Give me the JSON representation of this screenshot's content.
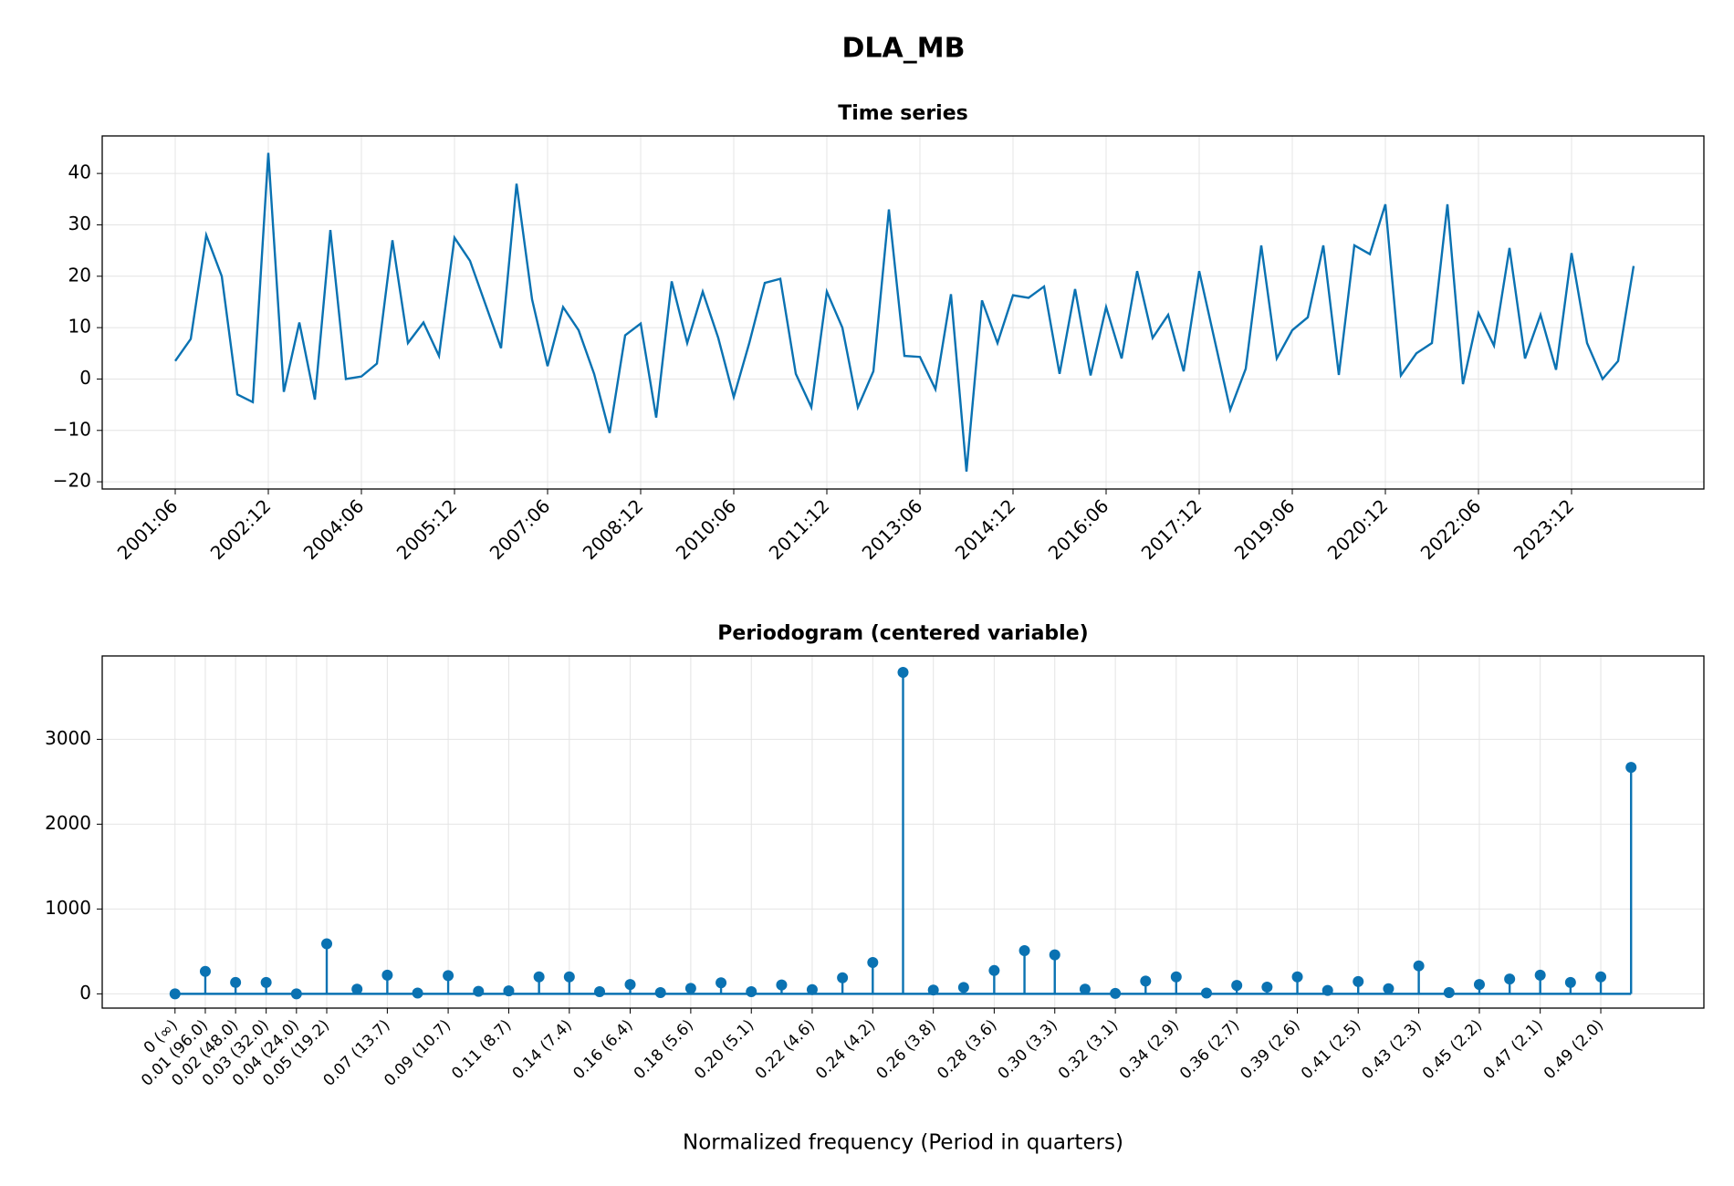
{
  "title": "DLA_MB",
  "chart_data": [
    {
      "type": "line",
      "title": "Time series",
      "color": "#0a72b2",
      "grid": true,
      "categories": [
        "2001:06",
        null,
        null,
        null,
        null,
        null,
        "2002:12",
        null,
        null,
        null,
        null,
        null,
        "2004:06",
        null,
        null,
        null,
        null,
        null,
        "2005:12",
        null,
        null,
        null,
        null,
        null,
        "2007:06",
        null,
        null,
        null,
        null,
        null,
        "2008:12",
        null,
        null,
        null,
        null,
        null,
        "2010:06",
        null,
        null,
        null,
        null,
        null,
        "2011:12",
        null,
        null,
        null,
        null,
        null,
        "2013:06",
        null,
        null,
        null,
        null,
        null,
        "2014:12",
        null,
        null,
        null,
        null,
        null,
        "2016:06",
        null,
        null,
        null,
        null,
        null,
        "2017:12",
        null,
        null,
        null,
        null,
        null,
        "2019:06",
        null,
        null,
        null,
        null,
        null,
        "2020:12",
        null,
        null,
        null,
        null,
        null,
        "2022:06",
        null,
        null,
        null,
        null,
        null,
        "2023:12",
        null,
        null,
        null,
        null
      ],
      "values": [
        3.5,
        7.8,
        28,
        20,
        -3,
        -4.5,
        44,
        -2.5,
        11,
        -4,
        29,
        0,
        0.5,
        3,
        27,
        7,
        11,
        4.5,
        27.5,
        23,
        14.5,
        6,
        38,
        15.5,
        2.5,
        14,
        9.5,
        1,
        -10.5,
        8.5,
        10.8,
        -7.5,
        19,
        7,
        17,
        8,
        -3.5,
        7,
        18.7,
        19.5,
        1,
        -5.5,
        17,
        10,
        -5.5,
        1.5,
        33,
        4.5,
        4.3,
        -2,
        16.5,
        -18,
        15.3,
        7,
        16.3,
        15.8,
        18,
        1,
        17.5,
        0.7,
        14,
        4,
        21,
        8,
        12.5,
        1.5,
        21,
        7.5,
        -6,
        2,
        26,
        4,
        9.5,
        12,
        26,
        0.8,
        26,
        24.3,
        34,
        0.7,
        5,
        7,
        34,
        -1,
        12.8,
        6.5,
        25.5,
        4,
        12.5,
        1.8,
        24.5,
        7,
        0,
        3.5,
        22
      ],
      "ylim": [
        -21.4,
        47.3
      ],
      "yticks": [
        {
          "value": -20,
          "label": "−20"
        },
        {
          "value": -10,
          "label": "−10"
        },
        0,
        10,
        20,
        30,
        40
      ]
    },
    {
      "type": "stem",
      "title": "Periodogram (centered variable)",
      "color": "#0a72b2",
      "grid": true,
      "x_label": "Normalized frequency (Period in quarters)",
      "x": [
        0,
        0.0104,
        0.0208,
        0.0313,
        0.0417,
        0.0521,
        0.0625,
        0.0729,
        0.0833,
        0.0938,
        0.1042,
        0.1146,
        0.125,
        0.1354,
        0.1458,
        0.1563,
        0.1667,
        0.1771,
        0.1875,
        0.1979,
        0.2083,
        0.2188,
        0.2292,
        0.2396,
        0.25,
        0.2604,
        0.2708,
        0.2813,
        0.2917,
        0.3021,
        0.3125,
        0.3229,
        0.3333,
        0.3438,
        0.3542,
        0.3646,
        0.375,
        0.3854,
        0.3958,
        0.4063,
        0.4167,
        0.4271,
        0.4375,
        0.4479,
        0.4583,
        0.4688,
        0.4792,
        0.4896,
        0.5
      ],
      "values": [
        0,
        265,
        135,
        135,
        0,
        590,
        55,
        220,
        10,
        215,
        30,
        35,
        200,
        200,
        25,
        110,
        15,
        65,
        130,
        25,
        105,
        50,
        190,
        370,
        3790,
        45,
        75,
        275,
        510,
        460,
        55,
        5,
        150,
        200,
        10,
        100,
        80,
        200,
        40,
        145,
        60,
        330,
        15,
        110,
        175,
        220,
        135,
        200,
        2670
      ],
      "xlim": [
        -0.025,
        0.525
      ],
      "xticks": [
        {
          "value": 0,
          "label": "0 (∞)"
        },
        {
          "value": 0.0104,
          "label": "0.01 (96.0)"
        },
        {
          "value": 0.0208,
          "label": "0.02 (48.0)"
        },
        {
          "value": 0.0313,
          "label": "0.03 (32.0)"
        },
        {
          "value": 0.0417,
          "label": "0.04 (24.0)"
        },
        {
          "value": 0.0521,
          "label": "0.05 (19.2)"
        },
        {
          "value": 0.0729,
          "label": "0.07 (13.7)"
        },
        {
          "value": 0.0938,
          "label": "0.09 (10.7)"
        },
        {
          "value": 0.1146,
          "label": "0.11 (8.7)"
        },
        {
          "value": 0.1354,
          "label": "0.14 (7.4)"
        },
        {
          "value": 0.1563,
          "label": "0.16 (6.4)"
        },
        {
          "value": 0.1771,
          "label": "0.18 (5.6)"
        },
        {
          "value": 0.1979,
          "label": "0.20 (5.1)"
        },
        {
          "value": 0.2188,
          "label": "0.22 (4.6)"
        },
        {
          "value": 0.2396,
          "label": "0.24 (4.2)"
        },
        {
          "value": 0.2604,
          "label": "0.26 (3.8)"
        },
        {
          "value": 0.2813,
          "label": "0.28 (3.6)"
        },
        {
          "value": 0.3021,
          "label": "0.30 (3.3)"
        },
        {
          "value": 0.3229,
          "label": "0.32 (3.1)"
        },
        {
          "value": 0.3438,
          "label": "0.34 (2.9)"
        },
        {
          "value": 0.3646,
          "label": "0.36 (2.7)"
        },
        {
          "value": 0.3854,
          "label": "0.39 (2.6)"
        },
        {
          "value": 0.4063,
          "label": "0.41 (2.5)"
        },
        {
          "value": 0.4271,
          "label": "0.43 (2.3)"
        },
        {
          "value": 0.4479,
          "label": "0.45 (2.2)"
        },
        {
          "value": 0.4688,
          "label": "0.47 (2.1)"
        },
        {
          "value": 0.4896,
          "label": "0.49 (2.0)"
        }
      ],
      "ylim": [
        -168,
        3983
      ],
      "yticks": [
        0,
        1000,
        2000,
        3000
      ]
    }
  ]
}
